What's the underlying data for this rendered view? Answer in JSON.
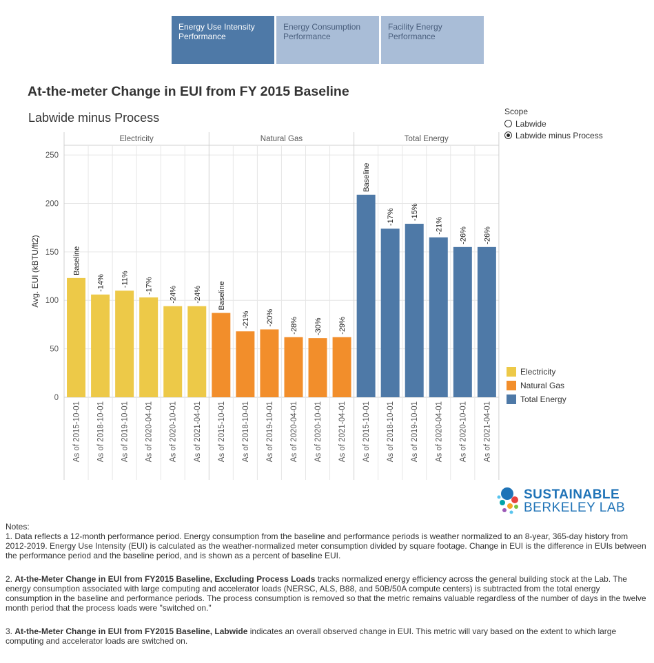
{
  "tabs": [
    {
      "label": "Energy Use Intensity Performance",
      "active": true
    },
    {
      "label": "Energy Consumption Performance",
      "active": false
    },
    {
      "label": "Facility Energy Performance",
      "active": false
    }
  ],
  "title": "At-the-meter Change in EUI from FY 2015 Baseline",
  "subtitle": "Labwide minus Process",
  "scope": {
    "title": "Scope",
    "options": [
      "Labwide",
      "Labwide minus Process"
    ],
    "selected": "Labwide minus Process"
  },
  "legend": [
    {
      "label": "Electricity",
      "color": "#edc948"
    },
    {
      "label": "Natural Gas",
      "color": "#f28e2b"
    },
    {
      "label": "Total Energy",
      "color": "#4e79a7"
    }
  ],
  "logo": {
    "line1": "SUSTAINABLE",
    "line2": "BERKELEY LAB"
  },
  "notes": {
    "heading": "Notes:",
    "n1": "1. Data reflects a 12-month performance period. Energy consumption from the baseline and performance periods is weather normalized to an 8-year, 365-day history from 2012-2019. Energy Use Intensity (EUI) is calculated as the weather-normalized meter consumption divided by square footage. Change in EUI is the difference in EUIs between the performance period and the baseline period, and is shown as a percent of baseline EUI.",
    "n2_num": "2. ",
    "n2_bold": "At-the-Meter Change in EUI from FY2015 Baseline, Excluding Process Loads",
    "n2_rest": " tracks normalized energy efficiency across the general building stock at the Lab. The energy consumption associated with large computing and accelerator loads (NERSC, ALS, B88, and 50B/50A compute centers) is subtracted from the total energy consumption in the baseline and performance periods. The process consumption is removed so that the metric remains valuable regardless of the number of days in the twelve month period that the process loads were \"switched on.\"",
    "n3_num": "3. ",
    "n3_bold": "At-the-Meter Change in EUI from FY2015 Baseline, Labwide",
    "n3_rest": " indicates an overall observed change in EUI. This metric will vary based on the extent to which large computing and accelerator loads are switched on."
  },
  "chart_data": {
    "type": "bar",
    "ylabel": "Avg. EUI (kBTU/ft2)",
    "ylim": [
      0,
      260
    ],
    "yticks": [
      0,
      50,
      100,
      150,
      200,
      250
    ],
    "grid": true,
    "categories": [
      "As of  2015-10-01",
      "As of  2018-10-01",
      "As of  2019-10-01",
      "As of  2020-04-01",
      "As of  2020-10-01",
      "As of  2021-04-01"
    ],
    "panels": [
      {
        "name": "Electricity",
        "color": "#edc948",
        "values": [
          123,
          106,
          110,
          103,
          94,
          94
        ],
        "labels": [
          "Baseline",
          "-14%",
          "-11%",
          "-17%",
          "-24%",
          "-24%"
        ]
      },
      {
        "name": "Natural Gas",
        "color": "#f28e2b",
        "values": [
          87,
          68,
          70,
          62,
          61,
          62
        ],
        "labels": [
          "Baseline",
          "-21%",
          "-20%",
          "-28%",
          "-30%",
          "-29%"
        ]
      },
      {
        "name": "Total Energy",
        "color": "#4e79a7",
        "values": [
          209,
          174,
          179,
          165,
          155,
          155
        ],
        "labels": [
          "Baseline",
          "-17%",
          "-15%",
          "-21%",
          "-26%",
          "-26%"
        ]
      }
    ]
  }
}
